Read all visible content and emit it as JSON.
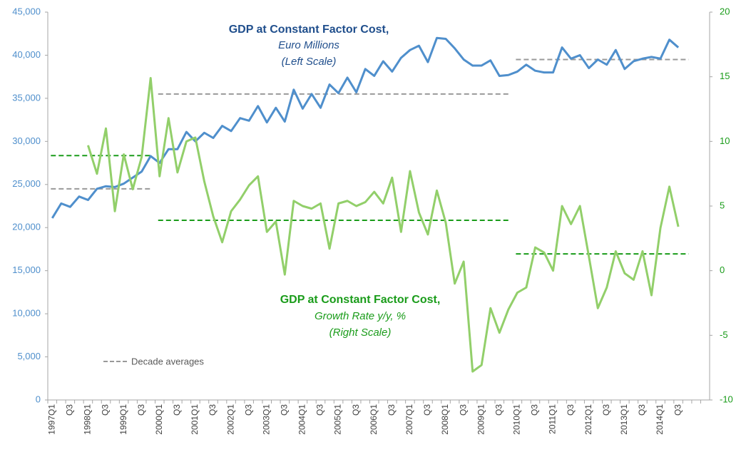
{
  "chart_data": {
    "type": "line",
    "left_title": [
      "GDP at Constant Factor Cost,",
      "Euro Millions",
      "(Left Scale)"
    ],
    "right_title": [
      "GDP at Constant Factor Cost,",
      "Growth Rate y/y, %",
      "(Right Scale)"
    ],
    "categories": [
      "1997Q1",
      null,
      "Q3",
      null,
      "1998Q1",
      null,
      "Q3",
      null,
      "1999Q1",
      null,
      "Q3",
      null,
      "2000Q1",
      null,
      "Q3",
      null,
      "2001Q1",
      null,
      "Q3",
      null,
      "2002Q1",
      null,
      "Q3",
      null,
      "2003Q1",
      null,
      "Q3",
      null,
      "2004Q1",
      null,
      "Q3",
      null,
      "2005Q1",
      null,
      "Q3",
      null,
      "2006Q1",
      null,
      "Q3",
      null,
      "2007Q1",
      null,
      "Q3",
      null,
      "2008Q1",
      null,
      "Q3",
      null,
      "2009Q1",
      null,
      "Q3",
      null,
      "2010Q1",
      null,
      "Q3",
      null,
      "2011Q1",
      null,
      "Q3",
      null,
      "2012Q1",
      null,
      "Q3",
      null,
      "2013Q1",
      null,
      "Q3",
      null,
      "2014Q1",
      null,
      "Q3",
      null,
      null,
      null
    ],
    "series": [
      {
        "color": "#4f8fcc",
        "axis": "y",
        "values": [
          21100,
          22800,
          22400,
          23600,
          23200,
          24500,
          24800,
          24700,
          25100,
          25800,
          26500,
          28300,
          27500,
          29100,
          29100,
          31100,
          30000,
          31000,
          30400,
          31800,
          31200,
          32700,
          32400,
          34100,
          32200,
          33900,
          32300,
          36000,
          33800,
          35500,
          33900,
          36600,
          35600,
          37400,
          35700,
          38400,
          37600,
          39300,
          38100,
          39700,
          40600,
          41100,
          39200,
          42000,
          41900,
          40800,
          39500,
          38800,
          38800,
          39400,
          37600,
          37700,
          38100,
          38900,
          38200,
          38000,
          38000,
          40900,
          39600,
          40000,
          38500,
          39500,
          38900,
          40600,
          38400,
          39300,
          39600,
          39800,
          39600,
          41800,
          40900,
          null,
          null,
          null
        ]
      },
      {
        "color": "#92cf6a",
        "axis": "y2",
        "values": [
          null,
          null,
          null,
          null,
          9.7,
          7.5,
          11.0,
          4.6,
          9.0,
          6.3,
          8.8,
          14.9,
          7.3,
          11.8,
          7.6,
          10.0,
          10.3,
          6.9,
          4.2,
          2.2,
          4.6,
          5.5,
          6.6,
          7.3,
          3.0,
          3.8,
          -0.3,
          5.4,
          5.0,
          4.8,
          5.2,
          1.7,
          5.2,
          5.4,
          5.0,
          5.3,
          6.1,
          5.2,
          7.2,
          3.0,
          7.7,
          4.5,
          2.8,
          6.2,
          3.7,
          -1.0,
          0.7,
          -7.8,
          -7.3,
          -2.9,
          -4.8,
          -3.0,
          -1.7,
          -1.3,
          1.8,
          1.4,
          0.0,
          5.0,
          3.6,
          5.0,
          1.1,
          -2.9,
          -1.3,
          1.5,
          -0.2,
          -0.7,
          1.5,
          -1.9,
          3.3,
          6.5,
          3.4,
          null,
          null,
          null
        ]
      }
    ],
    "averages": {
      "name": "Decade averages",
      "sets": [
        {
          "axis": "y",
          "color": "#999999",
          "segments": [
            {
              "from": 0,
              "to": 11,
              "value": 24500
            },
            {
              "from": 12,
              "to": 51,
              "value": 35500
            },
            {
              "from": 52,
              "to": 71,
              "value": 39500
            }
          ]
        },
        {
          "axis": "y2",
          "color": "#1a9c1a",
          "segments": [
            {
              "from": 0,
              "to": 11,
              "value": 8.9
            },
            {
              "from": 12,
              "to": 51,
              "value": 3.9
            },
            {
              "from": 52,
              "to": 71,
              "value": 1.3
            }
          ]
        }
      ]
    },
    "ylim": [
      0,
      45000
    ],
    "yticks": [
      0,
      {
        "value": 5000,
        "label": "5,000"
      },
      {
        "value": 10000,
        "label": "10,000"
      },
      {
        "value": 15000,
        "label": "15,000"
      },
      {
        "value": 20000,
        "label": "20,000"
      },
      {
        "value": 25000,
        "label": "25,000"
      },
      {
        "value": 30000,
        "label": "30,000"
      },
      {
        "value": 35000,
        "label": "35,000"
      },
      {
        "value": 40000,
        "label": "40,000"
      },
      {
        "value": 45000,
        "label": "45,000"
      }
    ],
    "y2lim": [
      -10,
      20
    ],
    "y2ticks": [
      -10,
      -5,
      0,
      5,
      10,
      15,
      20
    ],
    "y_tick_color": "#4f8fcc",
    "y2_tick_color": "#1a9c1a"
  }
}
